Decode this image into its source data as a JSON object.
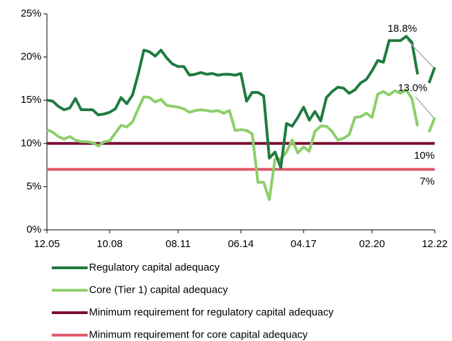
{
  "chart_data": {
    "type": "line",
    "categories": [
      "12.05",
      null,
      null,
      null,
      null,
      null,
      null,
      null,
      null,
      null,
      null,
      "10.08",
      null,
      null,
      null,
      null,
      null,
      null,
      null,
      null,
      null,
      null,
      null,
      "08.11",
      null,
      null,
      null,
      null,
      null,
      null,
      null,
      null,
      null,
      null,
      "06.14",
      null,
      null,
      null,
      null,
      null,
      null,
      null,
      null,
      null,
      null,
      "04.17",
      null,
      null,
      null,
      null,
      null,
      null,
      null,
      null,
      null,
      null,
      null,
      "02.20",
      null,
      null,
      null,
      null,
      null,
      null,
      null,
      null,
      null,
      null,
      "12.22"
    ],
    "series": [
      {
        "name": "Regulatory capital adequacy",
        "color": "#1e7b3f",
        "values": [
          15.0,
          14.9,
          14.3,
          13.9,
          14.1,
          15.2,
          13.9,
          13.9,
          13.9,
          13.3,
          13.4,
          13.6,
          14.0,
          15.3,
          14.6,
          15.6,
          18.0,
          20.8,
          20.6,
          20.1,
          20.8,
          19.9,
          19.2,
          18.9,
          18.9,
          17.9,
          18.0,
          18.2,
          18.0,
          18.1,
          17.9,
          18.0,
          18.0,
          17.9,
          18.1,
          14.9,
          15.9,
          15.9,
          15.5,
          8.3,
          9.0,
          7.2,
          12.3,
          12.0,
          13.0,
          14.2,
          12.7,
          13.7,
          12.6,
          15.3,
          16.0,
          16.5,
          16.4,
          15.8,
          16.2,
          17.0,
          17.4,
          18.4,
          19.6,
          19.4,
          21.9,
          21.9,
          21.9,
          22.4,
          21.7,
          18.0,
          null,
          17.0,
          18.8
        ]
      },
      {
        "name": "Core (Tier 1) capital adequacy",
        "color": "#8ccf6a",
        "values": [
          11.6,
          11.3,
          10.8,
          10.5,
          10.8,
          10.4,
          10.2,
          10.2,
          10.1,
          9.7,
          10.2,
          10.3,
          11.2,
          12.1,
          11.9,
          12.5,
          14.0,
          15.4,
          15.3,
          14.8,
          15.1,
          14.4,
          14.3,
          14.2,
          14.0,
          13.6,
          13.8,
          13.9,
          13.8,
          13.7,
          13.8,
          13.5,
          13.8,
          11.5,
          11.6,
          11.5,
          11.1,
          5.5,
          5.5,
          3.5,
          8.2,
          8.2,
          9.0,
          10.4,
          8.9,
          9.6,
          9.1,
          11.4,
          12.0,
          12.0,
          11.4,
          10.4,
          10.6,
          11.0,
          13.0,
          13.1,
          13.5,
          13.0,
          15.7,
          16.0,
          15.6,
          16.1,
          15.8,
          16.2,
          15.2,
          12.0,
          null,
          11.3,
          13.0
        ]
      }
    ],
    "reference_lines": [
      {
        "name": "Minimum requirement for regulatory capital adequacy",
        "color": "#7b0c33",
        "value": 10,
        "label": "10%"
      },
      {
        "name": "Minimum requirement for core capital adequacy",
        "color": "#e0566a",
        "value": 7,
        "label": "7%"
      }
    ],
    "annotations": [
      {
        "text": "18.8%",
        "value": 18.8
      },
      {
        "text": "13.0%",
        "value": 13.0
      }
    ],
    "ylim": [
      0,
      25
    ],
    "yticks": [
      {
        "value": 0,
        "label": "0%"
      },
      {
        "value": 5,
        "label": "5%"
      },
      {
        "value": 10,
        "label": "10%"
      },
      {
        "value": 15,
        "label": "15%"
      },
      {
        "value": 20,
        "label": "20%"
      },
      {
        "value": 25,
        "label": "25%"
      }
    ]
  }
}
